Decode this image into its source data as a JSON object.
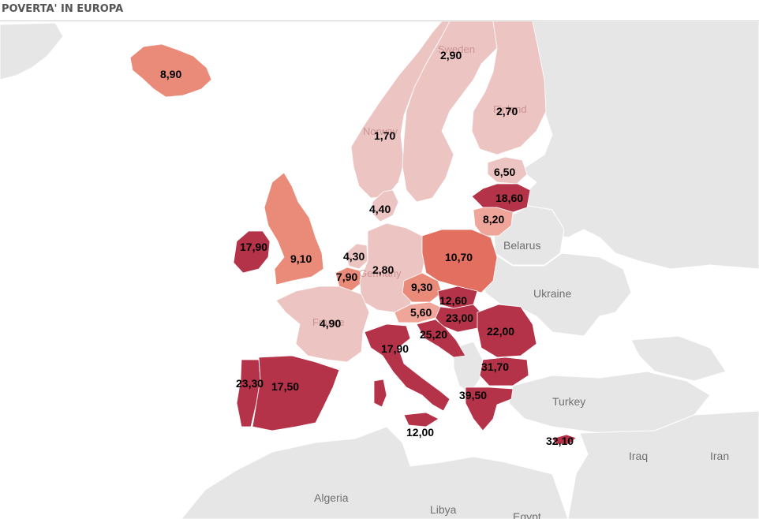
{
  "title": "POVERTA' IN EUROPA",
  "colors": {
    "very_low": "#ecc5c3",
    "low": "#f0a59a",
    "mid": "#ea8a79",
    "midhigh": "#e26f60",
    "high": "#b53348",
    "land": "#e6e6e6"
  },
  "countries": {
    "iceland": {
      "value": "8,90"
    },
    "sweden": {
      "value": "2,90",
      "name": "Sweden"
    },
    "finland": {
      "value": "2,70",
      "name": "Finland"
    },
    "norway": {
      "value": "1,70",
      "name": "Norway"
    },
    "estonia": {
      "value": "6,50"
    },
    "latvia": {
      "value": "18,60"
    },
    "lithuania": {
      "value": "8,20"
    },
    "denmark": {
      "value": "4,40"
    },
    "ireland": {
      "value": "17,90"
    },
    "uk": {
      "value": "9,10"
    },
    "netherlands": {
      "value": "4,30"
    },
    "belgium": {
      "value": "7,90"
    },
    "germany": {
      "value": "2,80",
      "name": "Germany"
    },
    "poland": {
      "value": "10,70"
    },
    "czech": {
      "value": "9,30"
    },
    "slovakia": {
      "value": "12,60"
    },
    "austria": {
      "value": "5,60"
    },
    "hungary": {
      "value": "23,00"
    },
    "romania": {
      "value": "22,00"
    },
    "slovenia_croatia": {
      "value": "25,20"
    },
    "france": {
      "value": "4,90",
      "name": "France"
    },
    "italy": {
      "value": "17,90"
    },
    "bulgaria": {
      "value": "31,70"
    },
    "portugal": {
      "value": "23,30"
    },
    "spain": {
      "value": "17,50"
    },
    "greece": {
      "value": "39,50"
    },
    "malta": {
      "value": "12,00"
    },
    "cyprus": {
      "value": "32,10"
    }
  },
  "other_countries": {
    "belarus": "Belarus",
    "ukraine": "Ukraine",
    "turkey": "Turkey",
    "iraq": "Iraq",
    "iran": "Iran",
    "algeria": "Algeria",
    "libya": "Libya",
    "egypt": "Egypt"
  }
}
